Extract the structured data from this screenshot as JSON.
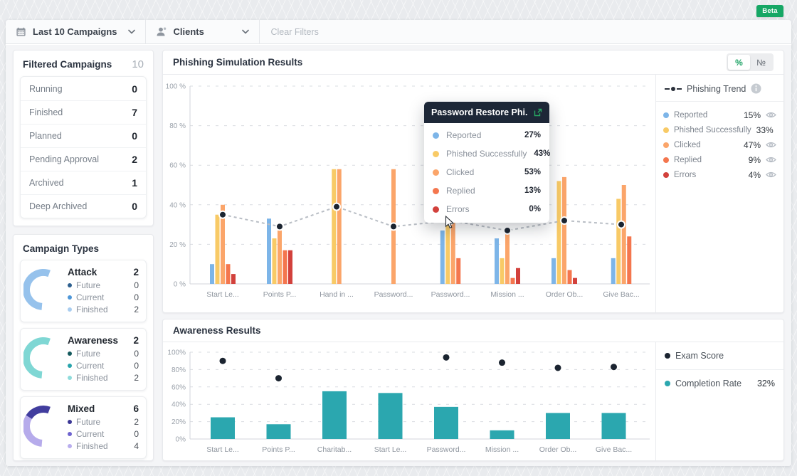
{
  "app": {
    "beta_label": "Beta",
    "accent_green": "#16a765"
  },
  "filter_bar": {
    "campaigns_label": "Last 10 Campaigns",
    "clients_label": "Clients",
    "clear_label": "Clear Filters"
  },
  "filtered_campaigns": {
    "title": "Filtered Campaigns",
    "total": "10",
    "rows": [
      {
        "label": "Running",
        "value": "0"
      },
      {
        "label": "Finished",
        "value": "7"
      },
      {
        "label": "Planned",
        "value": "0"
      },
      {
        "label": "Pending Approval",
        "value": "2"
      },
      {
        "label": "Archived",
        "value": "1"
      },
      {
        "label": "Deep Archived",
        "value": "0"
      }
    ]
  },
  "campaign_types": {
    "title": "Campaign Types",
    "types": [
      {
        "name": "Attack",
        "count": "2",
        "arc": {
          "start": 20,
          "segments": [
            {
              "color": "#96c2ec",
              "sweep": -195
            }
          ]
        },
        "rows": [
          {
            "label": "Future",
            "value": "0",
            "dot": "#2e608f"
          },
          {
            "label": "Current",
            "value": "0",
            "dot": "#4e97d8"
          },
          {
            "label": "Finished",
            "value": "2",
            "dot": "#a9cdf0"
          }
        ]
      },
      {
        "name": "Awareness",
        "count": "2",
        "arc": {
          "start": 20,
          "segments": [
            {
              "color": "#7fd7d4",
              "sweep": -195
            }
          ]
        },
        "rows": [
          {
            "label": "Future",
            "value": "0",
            "dot": "#155a5e"
          },
          {
            "label": "Current",
            "value": "0",
            "dot": "#28a4ac"
          },
          {
            "label": "Finished",
            "value": "2",
            "dot": "#8fdcdc"
          }
        ]
      },
      {
        "name": "Mixed",
        "count": "6",
        "arc": {
          "start": 20,
          "segments": [
            {
              "color": "#413d9e",
              "sweep": -78
            },
            {
              "color": "#b6abeb",
              "sweep": -117
            }
          ]
        },
        "rows": [
          {
            "label": "Future",
            "value": "2",
            "dot": "#3b3795"
          },
          {
            "label": "Current",
            "value": "0",
            "dot": "#6f64cf"
          },
          {
            "label": "Finished",
            "value": "4",
            "dot": "#b9aeee"
          }
        ]
      }
    ]
  },
  "phishing_panel": {
    "title": "Phishing Simulation Results",
    "toggle": {
      "percent": "%",
      "number": "№"
    },
    "legend": {
      "trend_label": "Phishing Trend",
      "items": [
        {
          "label": "Reported",
          "value": "15%",
          "color": "#7db5e8"
        },
        {
          "label": "Phished Successfully",
          "value": "33%",
          "color": "#f8ca66"
        },
        {
          "label": "Clicked",
          "value": "47%",
          "color": "#fba56a"
        },
        {
          "label": "Replied",
          "value": "9%",
          "color": "#f4764e"
        },
        {
          "label": "Errors",
          "value": "4%",
          "color": "#d2413c"
        }
      ]
    },
    "tooltip": {
      "title": "Password Restore Phi...",
      "rows": [
        {
          "label": "Reported",
          "value": "27%",
          "color": "#7db5e8"
        },
        {
          "label": "Phished Successfully",
          "value": "43%",
          "color": "#f8ca66"
        },
        {
          "label": "Clicked",
          "value": "53%",
          "color": "#fba56a"
        },
        {
          "label": "Replied",
          "value": "13%",
          "color": "#f4764e"
        },
        {
          "label": "Errors",
          "value": "0%",
          "color": "#d2413c"
        }
      ]
    }
  },
  "awareness_panel": {
    "title": "Awareness Results",
    "legend": {
      "exam_label": "Exam Score",
      "exam_color": "#1b2430",
      "completion_label": "Completion Rate",
      "completion_value": "32%",
      "completion_color": "#2ba7af"
    }
  },
  "chart_data": [
    {
      "type": "bar",
      "title": "Phishing Simulation Results",
      "categories": [
        "Start Le...",
        "Points P...",
        "Hand in ...",
        "Password...",
        "Password...",
        "Mission ...",
        "Order Ob...",
        "Give Bac..."
      ],
      "series": [
        {
          "name": "Reported",
          "color": "#7db5e8",
          "values": [
            10,
            33,
            null,
            null,
            27,
            23,
            13,
            13
          ]
        },
        {
          "name": "Phished Successfully",
          "color": "#f8ca66",
          "values": [
            35,
            23,
            58,
            null,
            43,
            13,
            52,
            43
          ]
        },
        {
          "name": "Clicked",
          "color": "#fba56a",
          "values": [
            40,
            27,
            58,
            58,
            53,
            27,
            54,
            50
          ]
        },
        {
          "name": "Replied",
          "color": "#f4764e",
          "values": [
            10,
            17,
            null,
            null,
            13,
            3,
            7,
            24
          ]
        },
        {
          "name": "Errors",
          "color": "#d2413c",
          "values": [
            5,
            17,
            null,
            null,
            null,
            8,
            3,
            null
          ]
        }
      ],
      "trend": {
        "name": "Phishing Trend",
        "color": "#1b2430",
        "values": [
          35,
          29,
          39,
          29,
          32,
          27,
          32,
          30
        ]
      },
      "ylim": [
        0,
        100
      ],
      "yticks": [
        "0 %",
        "20 %",
        "40 %",
        "60 %",
        "80 %",
        "100 %"
      ],
      "grid": "dashed-horizontal",
      "legend_position": "right"
    },
    {
      "type": "bar",
      "title": "Awareness Results",
      "categories": [
        "Start Le...",
        "Points P...",
        "Charitab...",
        "Start Le...",
        "Password...",
        "Mission ...",
        "Order Ob...",
        "Give Bac..."
      ],
      "series": [
        {
          "name": "Completion Rate",
          "color": "#2ba7af",
          "values": [
            25,
            17,
            55,
            53,
            37,
            10,
            30,
            30
          ]
        }
      ],
      "dots": {
        "name": "Exam Score",
        "color": "#1b2430",
        "values": [
          90,
          70,
          null,
          null,
          94,
          88,
          82,
          83
        ]
      },
      "ylim": [
        0,
        100
      ],
      "yticks": [
        "0%",
        "20%",
        "40%",
        "60%",
        "80%",
        "100%"
      ],
      "grid": "dashed-horizontal",
      "legend_position": "right"
    }
  ]
}
